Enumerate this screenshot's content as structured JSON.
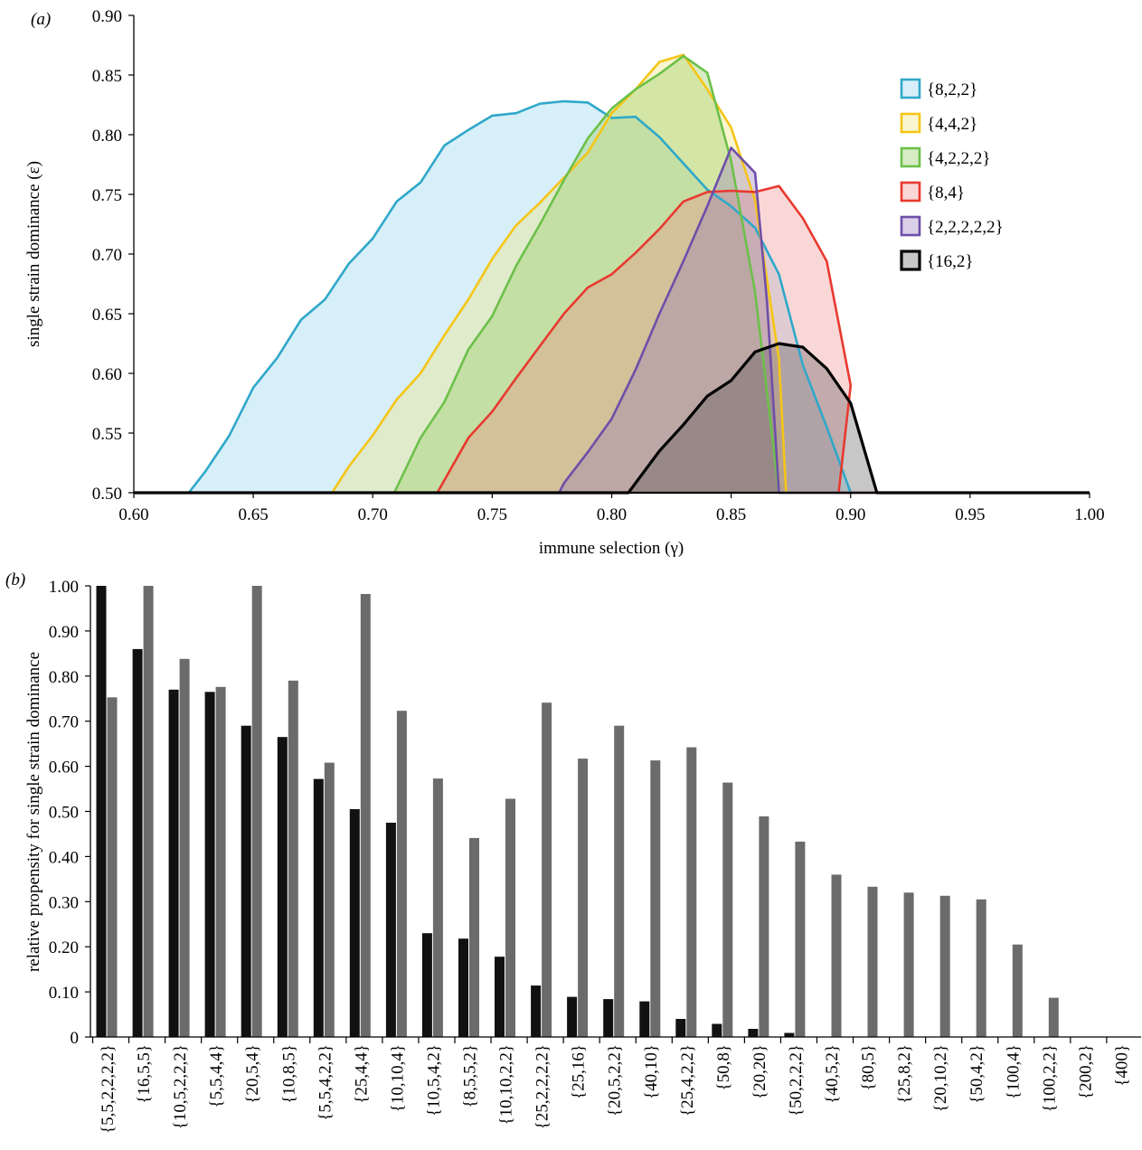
{
  "chart_data": [
    {
      "panel_label": "(a)",
      "type": "area",
      "xlabel": "immune selection (γ)",
      "ylabel": "single strain dominance (ε)",
      "xlim": [
        0.6,
        1.0
      ],
      "ylim": [
        0.5,
        0.9
      ],
      "xticks": [
        "0.60",
        "0.65",
        "0.70",
        "0.75",
        "0.80",
        "0.85",
        "0.90",
        "0.95",
        "1.00"
      ],
      "yticks": [
        "0.50",
        "0.55",
        "0.60",
        "0.65",
        "0.70",
        "0.75",
        "0.80",
        "0.85",
        "0.90"
      ],
      "legend_position": "right",
      "series": [
        {
          "name": "{8,2,2}",
          "color": "#2fa8c9",
          "fill": "rgba(130,205,235,0.32)",
          "points": [
            [
              0.6,
              0.5
            ],
            [
              0.623,
              0.5
            ],
            [
              0.63,
              0.518
            ],
            [
              0.64,
              0.548
            ],
            [
              0.65,
              0.588
            ],
            [
              0.66,
              0.613
            ],
            [
              0.67,
              0.645
            ],
            [
              0.68,
              0.662
            ],
            [
              0.69,
              0.692
            ],
            [
              0.7,
              0.713
            ],
            [
              0.71,
              0.744
            ],
            [
              0.72,
              0.76
            ],
            [
              0.73,
              0.791
            ],
            [
              0.74,
              0.804
            ],
            [
              0.75,
              0.816
            ],
            [
              0.76,
              0.818
            ],
            [
              0.77,
              0.826
            ],
            [
              0.78,
              0.828
            ],
            [
              0.79,
              0.827
            ],
            [
              0.8,
              0.814
            ],
            [
              0.81,
              0.815
            ],
            [
              0.82,
              0.798
            ],
            [
              0.83,
              0.776
            ],
            [
              0.84,
              0.754
            ],
            [
              0.85,
              0.74
            ],
            [
              0.86,
              0.722
            ],
            [
              0.87,
              0.683
            ],
            [
              0.88,
              0.607
            ],
            [
              0.89,
              0.555
            ],
            [
              0.9,
              0.5
            ],
            [
              1.0,
              0.5
            ]
          ]
        },
        {
          "name": "{4,4,2}",
          "color": "#f5c518",
          "fill": "rgba(240,230,130,0.38)",
          "points": [
            [
              0.6,
              0.5
            ],
            [
              0.683,
              0.5
            ],
            [
              0.69,
              0.522
            ],
            [
              0.7,
              0.548
            ],
            [
              0.71,
              0.578
            ],
            [
              0.72,
              0.6
            ],
            [
              0.73,
              0.632
            ],
            [
              0.74,
              0.662
            ],
            [
              0.75,
              0.696
            ],
            [
              0.76,
              0.724
            ],
            [
              0.77,
              0.743
            ],
            [
              0.78,
              0.764
            ],
            [
              0.79,
              0.785
            ],
            [
              0.8,
              0.818
            ],
            [
              0.81,
              0.838
            ],
            [
              0.82,
              0.861
            ],
            [
              0.83,
              0.867
            ],
            [
              0.84,
              0.838
            ],
            [
              0.85,
              0.806
            ],
            [
              0.86,
              0.745
            ],
            [
              0.87,
              0.612
            ],
            [
              0.873,
              0.5
            ],
            [
              1.0,
              0.5
            ]
          ]
        },
        {
          "name": "{4,2,2,2}",
          "color": "#6cc04a",
          "fill": "rgba(150,205,100,0.38)",
          "points": [
            [
              0.6,
              0.5
            ],
            [
              0.709,
              0.5
            ],
            [
              0.72,
              0.546
            ],
            [
              0.73,
              0.576
            ],
            [
              0.74,
              0.62
            ],
            [
              0.75,
              0.648
            ],
            [
              0.76,
              0.69
            ],
            [
              0.77,
              0.725
            ],
            [
              0.78,
              0.762
            ],
            [
              0.79,
              0.797
            ],
            [
              0.8,
              0.822
            ],
            [
              0.81,
              0.838
            ],
            [
              0.82,
              0.851
            ],
            [
              0.83,
              0.866
            ],
            [
              0.84,
              0.852
            ],
            [
              0.85,
              0.778
            ],
            [
              0.86,
              0.668
            ],
            [
              0.87,
              0.5
            ],
            [
              1.0,
              0.5
            ]
          ]
        },
        {
          "name": "{8,4}",
          "color": "#e8392f",
          "fill": "rgba(240,130,130,0.32)",
          "points": [
            [
              0.6,
              0.5
            ],
            [
              0.727,
              0.5
            ],
            [
              0.74,
              0.546
            ],
            [
              0.75,
              0.568
            ],
            [
              0.76,
              0.596
            ],
            [
              0.77,
              0.623
            ],
            [
              0.78,
              0.65
            ],
            [
              0.79,
              0.672
            ],
            [
              0.8,
              0.683
            ],
            [
              0.81,
              0.701
            ],
            [
              0.82,
              0.721
            ],
            [
              0.83,
              0.744
            ],
            [
              0.84,
              0.752
            ],
            [
              0.85,
              0.753
            ],
            [
              0.86,
              0.752
            ],
            [
              0.87,
              0.757
            ],
            [
              0.88,
              0.73
            ],
            [
              0.89,
              0.694
            ],
            [
              0.9,
              0.59
            ],
            [
              0.895,
              0.5
            ],
            [
              1.0,
              0.5
            ]
          ]
        },
        {
          "name": "{2,2,2,2,2}",
          "color": "#6e4fa8",
          "fill": "rgba(150,120,190,0.35)",
          "points": [
            [
              0.6,
              0.5
            ],
            [
              0.778,
              0.5
            ],
            [
              0.78,
              0.508
            ],
            [
              0.79,
              0.534
            ],
            [
              0.8,
              0.562
            ],
            [
              0.81,
              0.603
            ],
            [
              0.82,
              0.65
            ],
            [
              0.83,
              0.694
            ],
            [
              0.84,
              0.74
            ],
            [
              0.85,
              0.789
            ],
            [
              0.86,
              0.768
            ],
            [
              0.865,
              0.66
            ],
            [
              0.87,
              0.5
            ],
            [
              1.0,
              0.5
            ]
          ]
        },
        {
          "name": "{16,2}",
          "color": "#000000",
          "fill": "rgba(70,70,70,0.30)",
          "points": [
            [
              0.6,
              0.5
            ],
            [
              0.807,
              0.5
            ],
            [
              0.82,
              0.535
            ],
            [
              0.83,
              0.557
            ],
            [
              0.84,
              0.581
            ],
            [
              0.85,
              0.594
            ],
            [
              0.86,
              0.618
            ],
            [
              0.87,
              0.625
            ],
            [
              0.88,
              0.622
            ],
            [
              0.89,
              0.604
            ],
            [
              0.9,
              0.575
            ],
            [
              0.911,
              0.5
            ],
            [
              1.0,
              0.5
            ]
          ]
        }
      ]
    },
    {
      "panel_label": "(b)",
      "type": "bar",
      "ylabel": "relative propensity for single strain dominance",
      "ylim": [
        0,
        1.0
      ],
      "yticks": [
        "0",
        "0.10",
        "0.20",
        "0.30",
        "0.40",
        "0.50",
        "0.60",
        "0.70",
        "0.80",
        "0.90",
        "1.00"
      ],
      "categories": [
        "{5,5,2,2,2,2}",
        "{16,5,5}",
        "{10,5,2,2,2}",
        "{5,5,4,4}",
        "{20,5,4}",
        "{10,8,5}",
        "{5,5,4,2,2}",
        "{25,4,4}",
        "{10,10,4}",
        "{10,5,4,2}",
        "{8,5,5,2}",
        "{10,10,2,2}",
        "{25,2,2,2,2}",
        "{25,16}",
        "{20,5,2,2}",
        "{40,10}",
        "{25,4,2,2}",
        "{50,8}",
        "{20,20}",
        "{50,2,2,2}",
        "{40,5,2}",
        "{80,5}",
        "{25,8,2}",
        "{20,10,2}",
        "{50,4,2}",
        "{100,4}",
        "{100,2,2}",
        "{200,2}",
        "{400}"
      ],
      "series": [
        {
          "color": "#111111",
          "values": [
            1.0,
            0.86,
            0.77,
            0.765,
            0.69,
            0.665,
            0.572,
            0.505,
            0.475,
            0.23,
            0.218,
            0.178,
            0.114,
            0.089,
            0.084,
            0.079,
            0.04,
            0.029,
            0.018,
            0.009,
            0,
            0,
            0,
            0,
            0,
            0,
            0,
            0,
            0
          ]
        },
        {
          "color": "#6b6b6b",
          "values": [
            0.753,
            1.0,
            0.838,
            0.776,
            1.0,
            0.79,
            0.608,
            0.982,
            0.723,
            0.573,
            0.441,
            0.528,
            0.741,
            0.617,
            0.69,
            0.613,
            0.642,
            0.564,
            0.489,
            0.433,
            0.36,
            0.333,
            0.32,
            0.313,
            0.305,
            0.205,
            0.087,
            0,
            0
          ]
        }
      ]
    }
  ]
}
